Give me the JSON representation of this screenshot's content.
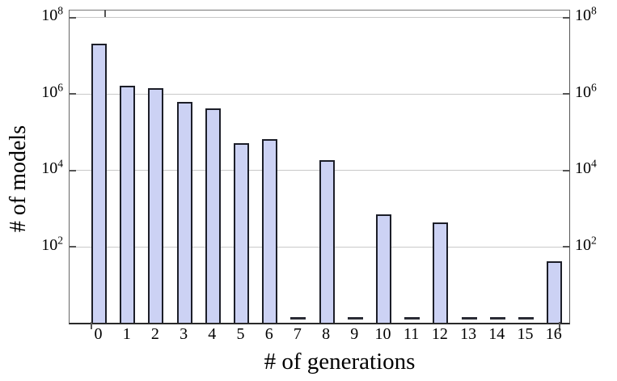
{
  "chart_data": {
    "type": "bar",
    "title": "",
    "xlabel": "# of generations",
    "ylabel": "# of models",
    "yscale": "log",
    "ylim": [
      1,
      100000000
    ],
    "grid": true,
    "legend": "none",
    "categories": [
      "0",
      "1",
      "2",
      "3",
      "4",
      "5",
      "6",
      "7",
      "8",
      "9",
      "10",
      "11",
      "12",
      "13",
      "14",
      "15",
      "16"
    ],
    "values": [
      20000000,
      1600000,
      1400000,
      600000,
      400000,
      50000,
      65000,
      1,
      18000,
      1,
      700,
      1,
      430,
      1,
      1,
      1,
      40
    ],
    "yticks": [
      {
        "base": "10",
        "exp": 2
      },
      {
        "base": "10",
        "exp": 4
      },
      {
        "base": "10",
        "exp": 6
      },
      {
        "base": "10",
        "exp": 8
      }
    ],
    "ytick_sides": [
      "left",
      "right"
    ],
    "colors": {
      "bar_fill": "#ccd2f4",
      "bar_border": "#1c1e28",
      "gridline": "#c9c9c9",
      "axis": "#555555",
      "text": "#000000",
      "background": "#ffffff"
    }
  }
}
